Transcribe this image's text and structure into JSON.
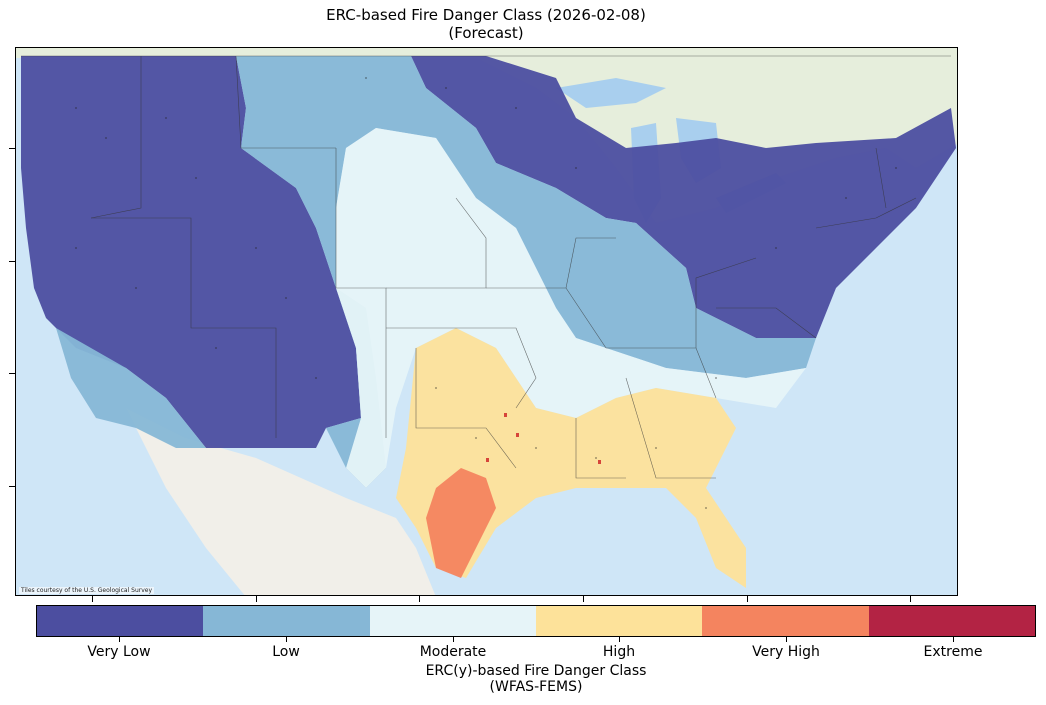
{
  "title": {
    "line1": "ERC-based Fire Danger Class (2026-02-08)",
    "line2": "(Forecast)"
  },
  "map": {
    "attribution": "Tiles courtesy of the U.S. Geological Survey",
    "basemap_colors": {
      "ocean": "#cfe6f7",
      "land": "#eef0ea",
      "canada": "#e6eedc"
    }
  },
  "colorbar": {
    "classes": [
      {
        "label": "Very Low",
        "color": "#4c4ea0"
      },
      {
        "label": "Low",
        "color": "#86b7d6"
      },
      {
        "label": "Moderate",
        "color": "#e6f4f8"
      },
      {
        "label": "High",
        "color": "#fde29a"
      },
      {
        "label": "Very High",
        "color": "#f4845f"
      },
      {
        "label": "Extreme",
        "color": "#b32344"
      }
    ],
    "title_line1": "ERC(y)-based Fire Danger Class",
    "title_line2": "(WFAS-FEMS)"
  }
}
